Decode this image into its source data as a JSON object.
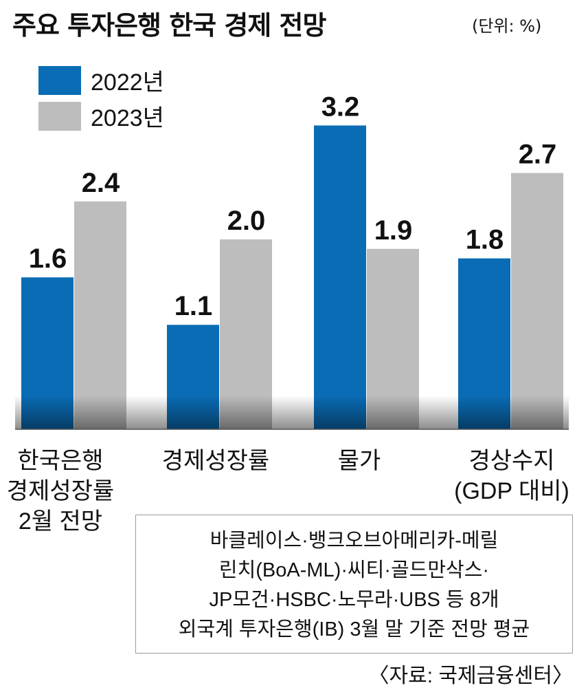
{
  "header": {
    "title": "주요 투자은행 한국 경제 전망",
    "unit": "(단위: %)"
  },
  "legend": {
    "items": [
      {
        "label": "2022년",
        "color": "#0a6cb5"
      },
      {
        "label": "2023년",
        "color": "#bdbdbd"
      }
    ]
  },
  "chart_data": {
    "type": "bar",
    "title": "주요 투자은행 한국 경제 전망",
    "ylabel": "%",
    "xlabel": "",
    "ylim": [
      0,
      3.2
    ],
    "legend_position": "top-left",
    "categories": [
      "한국은행\n경제성장률\n2월 전망",
      "경제성장률",
      "물가",
      "경상수지\n(GDP 대비)"
    ],
    "series": [
      {
        "name": "2022년",
        "values": [
          1.6,
          1.1,
          3.2,
          1.8
        ],
        "labels": [
          "1.6",
          "1.1",
          "3.2",
          "1.8"
        ]
      },
      {
        "name": "2023년",
        "values": [
          2.4,
          2.0,
          1.9,
          2.7
        ],
        "labels": [
          "2.4",
          "2.0",
          "1.9",
          "2.7"
        ]
      }
    ]
  },
  "note": {
    "lines": [
      "바클레이스·뱅크오브아메리카-메릴",
      "린치(BoA-ML)·씨티·골드만삭스·",
      "JP모건·HSBC·노무라·UBS 등 8개",
      "외국계 투자은행(IB) 3월 말 기준 전망 평균"
    ]
  },
  "source": "〈자료: 국제금융센터〉"
}
